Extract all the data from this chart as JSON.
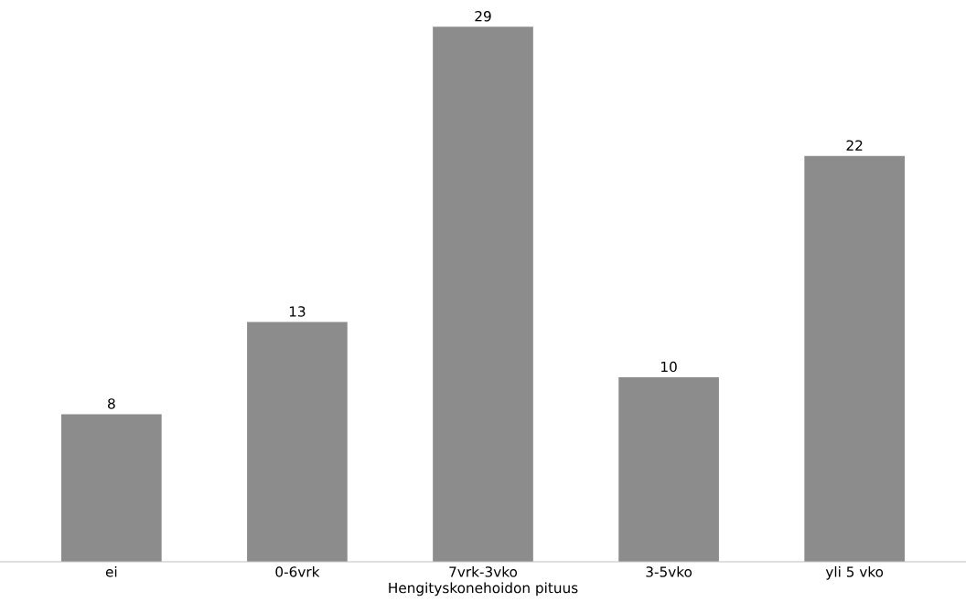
{
  "chart_data": {
    "type": "bar",
    "xlabel": "Hengityskonehoidon pituus",
    "categories": [
      "ei",
      "0-6vrk",
      "7vrk-3vko",
      "3-5vko",
      "yli 5 vko"
    ],
    "values": [
      8,
      13,
      29,
      10,
      22
    ],
    "color": "#8c8c8c",
    "data_labels": true,
    "tick_labels": "x",
    "grid": false,
    "legend": false
  }
}
